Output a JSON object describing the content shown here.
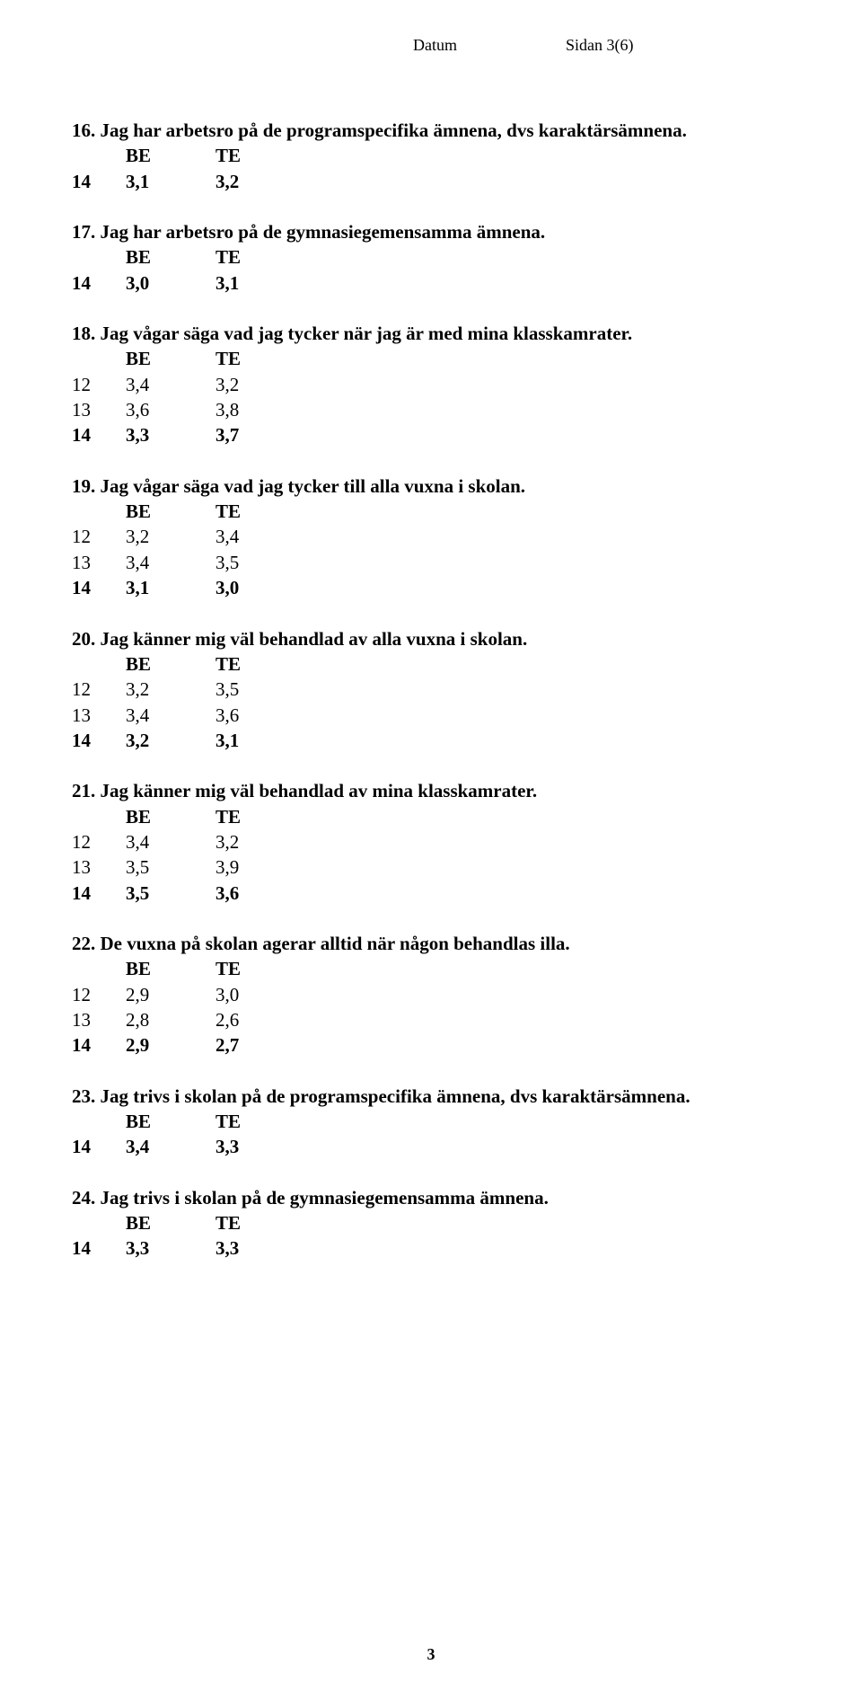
{
  "header": {
    "datum_label": "Datum",
    "sidan_label": "Sidan 3(6)"
  },
  "col_labels": {
    "be": "BE",
    "te": "TE"
  },
  "questions": [
    {
      "title": "16. Jag har arbetsro på de programspecifika ämnena, dvs karaktärsämnena.",
      "rows": [
        {
          "y": "14",
          "be": "3,1",
          "te": "3,2"
        }
      ]
    },
    {
      "title": "17. Jag har arbetsro på de gymnasiegemensamma ämnena.",
      "rows": [
        {
          "y": "14",
          "be": "3,0",
          "te": "3,1"
        }
      ]
    },
    {
      "title": "18. Jag vågar säga vad jag tycker när jag är med mina klasskamrater.",
      "rows": [
        {
          "y": "12",
          "be": "3,4",
          "te": "3,2"
        },
        {
          "y": "13",
          "be": "3,6",
          "te": "3,8"
        },
        {
          "y": "14",
          "be": "3,3",
          "te": "3,7"
        }
      ]
    },
    {
      "title": "19. Jag vågar säga vad jag tycker till alla vuxna i skolan.",
      "rows": [
        {
          "y": "12",
          "be": "3,2",
          "te": "3,4"
        },
        {
          "y": "13",
          "be": "3,4",
          "te": "3,5"
        },
        {
          "y": "14",
          "be": "3,1",
          "te": "3,0"
        }
      ]
    },
    {
      "title": "20. Jag känner mig väl behandlad av alla vuxna i skolan.",
      "rows": [
        {
          "y": "12",
          "be": "3,2",
          "te": "3,5"
        },
        {
          "y": "13",
          "be": "3,4",
          "te": "3,6"
        },
        {
          "y": "14",
          "be": "3,2",
          "te": "3,1"
        }
      ]
    },
    {
      "title": "21. Jag känner mig väl behandlad av mina klasskamrater.",
      "rows": [
        {
          "y": "12",
          "be": "3,4",
          "te": "3,2"
        },
        {
          "y": "13",
          "be": "3,5",
          "te": "3,9"
        },
        {
          "y": "14",
          "be": "3,5",
          "te": "3,6"
        }
      ]
    },
    {
      "title": "22. De vuxna på skolan agerar alltid när någon behandlas illa.",
      "rows": [
        {
          "y": "12",
          "be": "2,9",
          "te": "3,0"
        },
        {
          "y": "13",
          "be": "2,8",
          "te": "2,6"
        },
        {
          "y": "14",
          "be": "2,9",
          "te": "2,7"
        }
      ]
    },
    {
      "title": "23. Jag trivs i skolan på de programspecifika ämnena, dvs karaktärsämnena.",
      "rows": [
        {
          "y": "14",
          "be": "3,4",
          "te": "3,3"
        }
      ]
    },
    {
      "title": "24. Jag trivs i skolan på de gymnasiegemensamma ämnena.",
      "rows": [
        {
          "y": "14",
          "be": "3,3",
          "te": "3,3"
        }
      ]
    }
  ],
  "footer": {
    "page_number": "3"
  }
}
